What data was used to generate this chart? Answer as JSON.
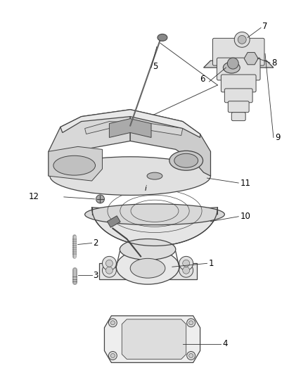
{
  "background_color": "#ffffff",
  "line_color": "#444444",
  "label_color": "#000000",
  "label_fontsize": 8.5,
  "fig_width": 4.38,
  "fig_height": 5.33,
  "dpi": 100
}
